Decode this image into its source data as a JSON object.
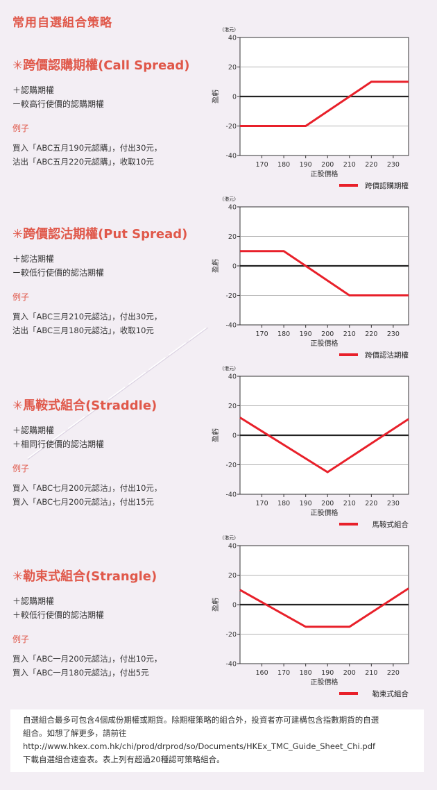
{
  "page_title": "常用自選組合策略",
  "sections": [
    {
      "title": "✳跨價認購期權(Call Spread)",
      "legs": [
        "＋認購期權",
        "ー較高行使價的認購期權"
      ],
      "example_label": "例子",
      "example_lines": [
        "買入「ABC五月190元認購」，付出30元，",
        "沽出「ABC五月220元認購」，收取10元"
      ]
    },
    {
      "title": "✳跨價認沽期權(Put Spread)",
      "legs": [
        "＋認沽期權",
        "ー較低行使價的認沽期權"
      ],
      "example_label": "例子",
      "example_lines": [
        "買入「ABC三月210元認沽」，付出30元，",
        "沽出「ABC三月180元認沽」，收取10元"
      ]
    },
    {
      "title": "✳馬鞍式組合(Straddle)",
      "legs": [
        "＋認購期權",
        "＋相同行使價的認沽期權"
      ],
      "example_label": "例子",
      "example_lines": [
        "買入「ABC七月200元認沽」，付出10元，",
        "買入「ABC七月200元認沽」，付出15元"
      ]
    },
    {
      "title": "✳勒束式組合(Strangle)",
      "legs": [
        "＋認購期權",
        "＋較低行使價的認沽期權"
      ],
      "example_label": "例子",
      "example_lines": [
        "買入「ABC一月200元認沽」，付出10元，",
        "買入「ABC一月180元認沽」，付出5元"
      ]
    }
  ],
  "chart_data": [
    {
      "type": "line",
      "unit": "(港元)",
      "xlabel": "正股價格",
      "ylabel": "盈虧",
      "xlim": [
        160,
        237
      ],
      "ylim": [
        -40,
        40
      ],
      "xticks": [
        170,
        180,
        190,
        200,
        210,
        220,
        230
      ],
      "yticks": [
        40,
        20,
        0,
        -20,
        -40
      ],
      "grid": true,
      "legend": "bottom-right",
      "series": [
        {
          "name": "跨價認購期權",
          "color": "#e8202a",
          "x": [
            160,
            190,
            220,
            237
          ],
          "y": [
            -20,
            -20,
            10,
            10
          ]
        }
      ]
    },
    {
      "type": "line",
      "unit": "(港元)",
      "xlabel": "正股價格",
      "ylabel": "盈虧",
      "xlim": [
        160,
        237
      ],
      "ylim": [
        -40,
        40
      ],
      "xticks": [
        170,
        180,
        190,
        200,
        210,
        220,
        230
      ],
      "yticks": [
        40,
        20,
        0,
        -20,
        -40
      ],
      "grid": true,
      "legend": "bottom-right",
      "series": [
        {
          "name": "跨價認沽期權",
          "color": "#e8202a",
          "x": [
            160,
            176,
            180,
            190,
            210,
            237
          ],
          "y": [
            10,
            10,
            10,
            0,
            -20,
            -20
          ]
        }
      ]
    },
    {
      "type": "line",
      "unit": "(港元)",
      "xlabel": "正股價格",
      "ylabel": "盈虧",
      "xlim": [
        160,
        237
      ],
      "ylim": [
        -40,
        40
      ],
      "xticks": [
        170,
        180,
        190,
        200,
        210,
        220,
        230
      ],
      "yticks": [
        40,
        20,
        0,
        -20,
        -40
      ],
      "grid": true,
      "legend": "bottom-right",
      "series": [
        {
          "name": "馬鞍式組合",
          "color": "#e8202a",
          "x": [
            160,
            200,
            237
          ],
          "y": [
            12,
            -25,
            11
          ]
        }
      ]
    },
    {
      "type": "line",
      "unit": "(港元)",
      "xlabel": "正股價格",
      "ylabel": "盈虧",
      "xlim": [
        150,
        227
      ],
      "ylim": [
        -40,
        40
      ],
      "xticks": [
        160,
        170,
        180,
        190,
        200,
        210,
        220
      ],
      "yticks": [
        40,
        20,
        0,
        -20,
        -40
      ],
      "grid": true,
      "legend": "bottom-right",
      "series": [
        {
          "name": "勒束式組合",
          "color": "#e8202a",
          "x": [
            150,
            180,
            200,
            227
          ],
          "y": [
            10,
            -15,
            -15,
            11
          ]
        }
      ]
    }
  ],
  "note_lines": [
    "自選組合最多可包含4個成份期權或期貨。除期權策略的組合外，投資者亦可建構包含指數期貨的自選",
    "組合。如想了解更多，請前往",
    "http://www.hkex.com.hk/chi/prod/drprod/so/Documents/HKEx_TMC_Guide_Sheet_Chi.pdf",
    "下載自選組合速查表。表上列有超過20種認可策略組合。"
  ]
}
